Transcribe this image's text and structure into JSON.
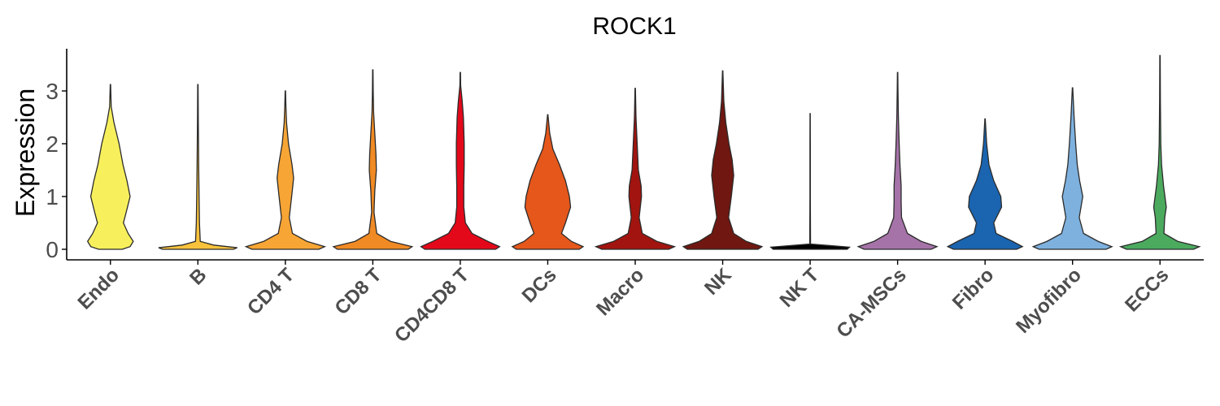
{
  "chart_data": {
    "type": "violin",
    "title": "ROCK1",
    "ylabel": "Expression",
    "xlabel": "",
    "ylim": [
      -0.2,
      3.8
    ],
    "yticks": [
      0,
      1,
      2,
      3
    ],
    "grid": false,
    "legend": "none",
    "categories": [
      "Endo",
      "B",
      "CD4 T",
      "CD8 T",
      "CD4CD8 T",
      "DCs",
      "Macro",
      "NK",
      "NK T",
      "CA-MSCs",
      "Fibro",
      "Myofibro",
      "ECCs"
    ],
    "colors": [
      "#F7F05C",
      "#F9C23C",
      "#F7A535",
      "#F08A24",
      "#E3091A",
      "#E5571B",
      "#A2140F",
      "#6F1710",
      "#000000",
      "#A573A8",
      "#1A64B0",
      "#7EB1DE",
      "#4BAA5E"
    ],
    "max_values": [
      3.12,
      3.12,
      3.0,
      3.4,
      3.35,
      2.55,
      3.05,
      3.38,
      2.57,
      3.35,
      2.47,
      3.06,
      3.67
    ],
    "density_profiles": [
      [
        [
          0,
          0.3
        ],
        [
          0.05,
          0.5
        ],
        [
          0.15,
          0.58
        ],
        [
          0.3,
          0.45
        ],
        [
          0.5,
          0.33
        ],
        [
          0.7,
          0.4
        ],
        [
          1.0,
          0.5
        ],
        [
          1.3,
          0.42
        ],
        [
          1.6,
          0.32
        ],
        [
          2.0,
          0.22
        ],
        [
          2.4,
          0.09
        ],
        [
          2.7,
          0.02
        ],
        [
          3.12,
          0.005
        ]
      ],
      [
        [
          0,
          0.9
        ],
        [
          0.03,
          1.0
        ],
        [
          0.08,
          0.4
        ],
        [
          0.15,
          0.06
        ],
        [
          0.5,
          0.04
        ],
        [
          1.0,
          0.03
        ],
        [
          1.6,
          0.02
        ],
        [
          2.5,
          0.01
        ],
        [
          3.12,
          0.005
        ]
      ],
      [
        [
          0,
          0.85
        ],
        [
          0.05,
          1.0
        ],
        [
          0.15,
          0.55
        ],
        [
          0.3,
          0.18
        ],
        [
          0.6,
          0.1
        ],
        [
          1.0,
          0.16
        ],
        [
          1.35,
          0.21
        ],
        [
          1.6,
          0.17
        ],
        [
          2.0,
          0.08
        ],
        [
          2.4,
          0.03
        ],
        [
          2.7,
          0.015
        ],
        [
          3.0,
          0.005
        ]
      ],
      [
        [
          0,
          0.9
        ],
        [
          0.05,
          1.0
        ],
        [
          0.15,
          0.45
        ],
        [
          0.3,
          0.1
        ],
        [
          0.7,
          0.03
        ],
        [
          1.1,
          0.05
        ],
        [
          1.5,
          0.09
        ],
        [
          1.8,
          0.08
        ],
        [
          2.2,
          0.05
        ],
        [
          2.6,
          0.02
        ],
        [
          3.0,
          0.01
        ],
        [
          3.4,
          0.005
        ]
      ],
      [
        [
          0,
          0.9
        ],
        [
          0.05,
          1.0
        ],
        [
          0.15,
          0.7
        ],
        [
          0.3,
          0.3
        ],
        [
          0.5,
          0.13
        ],
        [
          0.8,
          0.09
        ],
        [
          1.2,
          0.09
        ],
        [
          1.6,
          0.1
        ],
        [
          2.0,
          0.1
        ],
        [
          2.5,
          0.08
        ],
        [
          2.8,
          0.05
        ],
        [
          3.1,
          0.01
        ],
        [
          3.35,
          0.005
        ]
      ],
      [
        [
          0,
          0.8
        ],
        [
          0.05,
          0.9
        ],
        [
          0.15,
          0.6
        ],
        [
          0.3,
          0.35
        ],
        [
          0.5,
          0.45
        ],
        [
          0.8,
          0.58
        ],
        [
          1.0,
          0.55
        ],
        [
          1.3,
          0.45
        ],
        [
          1.6,
          0.3
        ],
        [
          1.9,
          0.13
        ],
        [
          2.2,
          0.05
        ],
        [
          2.55,
          0.005
        ]
      ],
      [
        [
          0,
          0.85
        ],
        [
          0.05,
          1.0
        ],
        [
          0.15,
          0.55
        ],
        [
          0.3,
          0.18
        ],
        [
          0.6,
          0.1
        ],
        [
          1.0,
          0.16
        ],
        [
          1.2,
          0.15
        ],
        [
          1.5,
          0.08
        ],
        [
          2.0,
          0.05
        ],
        [
          2.5,
          0.02
        ],
        [
          3.05,
          0.005
        ]
      ],
      [
        [
          0,
          0.9
        ],
        [
          0.05,
          1.0
        ],
        [
          0.15,
          0.6
        ],
        [
          0.3,
          0.28
        ],
        [
          0.6,
          0.15
        ],
        [
          1.0,
          0.22
        ],
        [
          1.4,
          0.28
        ],
        [
          1.7,
          0.24
        ],
        [
          2.0,
          0.16
        ],
        [
          2.4,
          0.08
        ],
        [
          2.8,
          0.03
        ],
        [
          3.38,
          0.005
        ]
      ],
      [
        [
          0,
          0.94
        ],
        [
          0.04,
          1.0
        ],
        [
          0.1,
          0.01
        ],
        [
          1.0,
          0.005
        ],
        [
          2.0,
          0.005
        ],
        [
          2.57,
          0.003
        ]
      ],
      [
        [
          0,
          0.85
        ],
        [
          0.05,
          1.0
        ],
        [
          0.15,
          0.6
        ],
        [
          0.3,
          0.25
        ],
        [
          0.6,
          0.1
        ],
        [
          0.9,
          0.09
        ],
        [
          1.2,
          0.09
        ],
        [
          1.6,
          0.06
        ],
        [
          2.0,
          0.04
        ],
        [
          2.5,
          0.02
        ],
        [
          3.0,
          0.01
        ],
        [
          3.35,
          0.005
        ]
      ],
      [
        [
          0,
          0.8
        ],
        [
          0.05,
          0.95
        ],
        [
          0.15,
          0.7
        ],
        [
          0.3,
          0.28
        ],
        [
          0.5,
          0.22
        ],
        [
          0.8,
          0.42
        ],
        [
          1.0,
          0.4
        ],
        [
          1.3,
          0.22
        ],
        [
          1.6,
          0.1
        ],
        [
          2.0,
          0.04
        ],
        [
          2.47,
          0.005
        ]
      ],
      [
        [
          0,
          0.85
        ],
        [
          0.05,
          1.0
        ],
        [
          0.15,
          0.65
        ],
        [
          0.3,
          0.28
        ],
        [
          0.6,
          0.17
        ],
        [
          1.0,
          0.26
        ],
        [
          1.3,
          0.18
        ],
        [
          1.6,
          0.12
        ],
        [
          2.0,
          0.08
        ],
        [
          2.5,
          0.04
        ],
        [
          3.06,
          0.005
        ]
      ],
      [
        [
          0,
          0.85
        ],
        [
          0.05,
          1.0
        ],
        [
          0.15,
          0.45
        ],
        [
          0.3,
          0.1
        ],
        [
          0.6,
          0.12
        ],
        [
          0.8,
          0.16
        ],
        [
          1.2,
          0.09
        ],
        [
          1.6,
          0.04
        ],
        [
          2.0,
          0.02
        ],
        [
          2.8,
          0.01
        ],
        [
          3.67,
          0.005
        ]
      ]
    ]
  }
}
